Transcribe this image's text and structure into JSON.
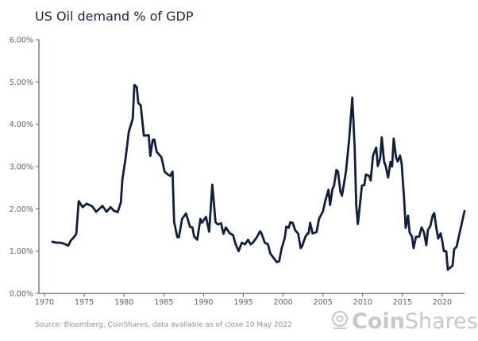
{
  "chart_data": {
    "type": "line",
    "title": "US Oil demand % of GDP",
    "xlabel": "",
    "ylabel": "",
    "xlim": [
      1969.3,
      2022.8
    ],
    "ylim": [
      0,
      6
    ],
    "x_ticks": [
      "1970",
      "1975",
      "1980",
      "1985",
      "1990",
      "1995",
      "2000",
      "2005",
      "2010",
      "2015",
      "2020"
    ],
    "y_ticks": [
      "0.00%",
      "1.00%",
      "2.00%",
      "3.00%",
      "4.00%",
      "5.00%",
      "6.00%"
    ],
    "grid": false,
    "line_color": "#0f1f3d",
    "series": [
      {
        "points": [
          [
            1971.0,
            1.22
          ],
          [
            1971.5,
            1.2
          ],
          [
            1972.0,
            1.2
          ],
          [
            1972.5,
            1.17
          ],
          [
            1973.0,
            1.13
          ],
          [
            1973.3,
            1.25
          ],
          [
            1973.7,
            1.33
          ],
          [
            1974.0,
            1.41
          ],
          [
            1974.3,
            2.18
          ],
          [
            1974.8,
            2.04
          ],
          [
            1975.3,
            2.12
          ],
          [
            1976.0,
            2.06
          ],
          [
            1976.5,
            1.93
          ],
          [
            1977.3,
            2.07
          ],
          [
            1977.8,
            1.93
          ],
          [
            1978.3,
            2.04
          ],
          [
            1978.7,
            1.96
          ],
          [
            1979.2,
            1.92
          ],
          [
            1979.6,
            2.15
          ],
          [
            1979.8,
            2.7
          ],
          [
            1980.2,
            3.2
          ],
          [
            1980.6,
            3.82
          ],
          [
            1981.1,
            4.13
          ],
          [
            1981.3,
            4.93
          ],
          [
            1981.6,
            4.88
          ],
          [
            1981.8,
            4.5
          ],
          [
            1982.1,
            4.45
          ],
          [
            1982.5,
            3.73
          ],
          [
            1983.1,
            3.74
          ],
          [
            1983.3,
            3.25
          ],
          [
            1983.6,
            3.63
          ],
          [
            1983.8,
            3.64
          ],
          [
            1984.1,
            3.35
          ],
          [
            1984.7,
            3.22
          ],
          [
            1985.1,
            2.88
          ],
          [
            1985.5,
            2.81
          ],
          [
            1985.8,
            2.78
          ],
          [
            1986.1,
            2.88
          ],
          [
            1986.3,
            1.69
          ],
          [
            1986.7,
            1.33
          ],
          [
            1986.9,
            1.33
          ],
          [
            1987.3,
            1.76
          ],
          [
            1987.8,
            1.89
          ],
          [
            1988.3,
            1.57
          ],
          [
            1988.6,
            1.56
          ],
          [
            1988.8,
            1.35
          ],
          [
            1989.2,
            1.27
          ],
          [
            1989.6,
            1.76
          ],
          [
            1989.8,
            1.67
          ],
          [
            1990.3,
            1.81
          ],
          [
            1990.7,
            1.46
          ],
          [
            1991.1,
            2.57
          ],
          [
            1991.5,
            1.69
          ],
          [
            1991.8,
            1.63
          ],
          [
            1992.2,
            1.66
          ],
          [
            1992.5,
            1.41
          ],
          [
            1992.8,
            1.56
          ],
          [
            1993.3,
            1.42
          ],
          [
            1993.7,
            1.38
          ],
          [
            1994.0,
            1.18
          ],
          [
            1994.4,
            1.0
          ],
          [
            1994.8,
            1.2
          ],
          [
            1995.2,
            1.16
          ],
          [
            1995.6,
            1.27
          ],
          [
            1995.9,
            1.16
          ],
          [
            1996.2,
            1.2
          ],
          [
            1996.7,
            1.33
          ],
          [
            1997.1,
            1.47
          ],
          [
            1997.3,
            1.41
          ],
          [
            1997.7,
            1.2
          ],
          [
            1998.1,
            1.16
          ],
          [
            1998.4,
            0.94
          ],
          [
            1998.8,
            0.84
          ],
          [
            1999.2,
            0.74
          ],
          [
            1999.5,
            0.76
          ],
          [
            1999.8,
            1.06
          ],
          [
            2000.2,
            1.31
          ],
          [
            2000.4,
            1.58
          ],
          [
            2000.7,
            1.55
          ],
          [
            2000.9,
            1.68
          ],
          [
            2001.2,
            1.67
          ],
          [
            2001.5,
            1.5
          ],
          [
            2001.9,
            1.41
          ],
          [
            2002.2,
            1.07
          ],
          [
            2002.4,
            1.12
          ],
          [
            2002.8,
            1.34
          ],
          [
            2003.1,
            1.42
          ],
          [
            2003.2,
            1.42
          ],
          [
            2003.4,
            1.67
          ],
          [
            2003.7,
            1.42
          ],
          [
            2004.2,
            1.45
          ],
          [
            2004.5,
            1.76
          ],
          [
            2005.0,
            1.94
          ],
          [
            2005.3,
            2.19
          ],
          [
            2005.7,
            2.45
          ],
          [
            2005.9,
            2.09
          ],
          [
            2006.2,
            2.47
          ],
          [
            2006.4,
            2.55
          ],
          [
            2006.7,
            2.92
          ],
          [
            2006.9,
            2.88
          ],
          [
            2007.2,
            2.41
          ],
          [
            2007.4,
            2.31
          ],
          [
            2007.9,
            2.88
          ],
          [
            2008.3,
            3.63
          ],
          [
            2008.7,
            4.63
          ],
          [
            2009.0,
            3.44
          ],
          [
            2009.2,
            2.06
          ],
          [
            2009.4,
            1.64
          ],
          [
            2009.7,
            2.19
          ],
          [
            2009.9,
            2.55
          ],
          [
            2010.2,
            2.56
          ],
          [
            2010.4,
            2.81
          ],
          [
            2010.8,
            2.78
          ],
          [
            2011.0,
            2.67
          ],
          [
            2011.3,
            3.26
          ],
          [
            2011.7,
            3.45
          ],
          [
            2011.9,
            3.01
          ],
          [
            2012.2,
            3.19
          ],
          [
            2012.4,
            3.69
          ],
          [
            2012.7,
            3.11
          ],
          [
            2012.9,
            3.01
          ],
          [
            2013.2,
            2.74
          ],
          [
            2013.5,
            3.11
          ],
          [
            2013.7,
            3.0
          ],
          [
            2013.9,
            3.66
          ],
          [
            2014.2,
            3.22
          ],
          [
            2014.4,
            3.12
          ],
          [
            2014.7,
            3.26
          ],
          [
            2014.9,
            3.06
          ],
          [
            2015.2,
            2.25
          ],
          [
            2015.4,
            1.55
          ],
          [
            2015.7,
            1.84
          ],
          [
            2015.9,
            1.44
          ],
          [
            2016.2,
            1.34
          ],
          [
            2016.4,
            1.07
          ],
          [
            2016.7,
            1.34
          ],
          [
            2017.1,
            1.34
          ],
          [
            2017.4,
            1.56
          ],
          [
            2017.7,
            1.45
          ],
          [
            2018.0,
            1.14
          ],
          [
            2018.2,
            1.5
          ],
          [
            2018.5,
            1.59
          ],
          [
            2018.8,
            1.84
          ],
          [
            2019.0,
            1.9
          ],
          [
            2019.3,
            1.5
          ],
          [
            2019.5,
            1.3
          ],
          [
            2019.8,
            1.42
          ],
          [
            2020.0,
            1.25
          ],
          [
            2020.2,
            1.0
          ],
          [
            2020.5,
            1.0
          ],
          [
            2020.7,
            0.56
          ],
          [
            2021.0,
            0.61
          ],
          [
            2021.3,
            0.66
          ],
          [
            2021.5,
            1.05
          ],
          [
            2021.8,
            1.1
          ],
          [
            2022.2,
            1.44
          ],
          [
            2022.8,
            1.95
          ]
        ]
      }
    ]
  },
  "footer": {
    "source": "Source: Bloomberg, CoinShares, data available as of close 10 May 2022"
  },
  "logo": {
    "text_bold": "Coin",
    "text_light": "Shares"
  }
}
